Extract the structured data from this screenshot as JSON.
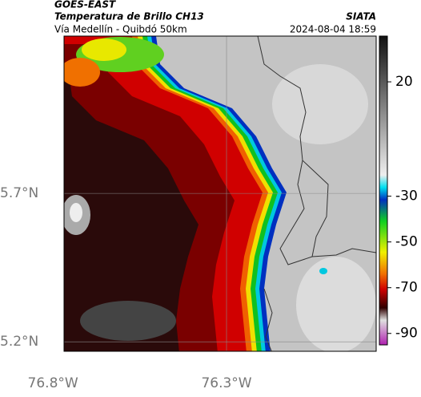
{
  "header": {
    "source": "GOES-EAST",
    "title": "Temperatura de Brillo CH13",
    "subtitle": "Vía Medellín - Quibdó 50km",
    "agency": "SIATA",
    "datetime": "2024-08-04 18:59"
  },
  "map": {
    "latlim": [
      5.168,
      6.23
    ],
    "lonlim": [
      -76.768,
      -75.869
    ],
    "lat_ticks": [
      {
        "value": 5.7,
        "label": "5.7°N"
      },
      {
        "value": 5.2,
        "label": "5.2°N"
      }
    ],
    "lon_ticks": [
      {
        "value": -76.8,
        "label": "76.8°W"
      },
      {
        "value": -76.3,
        "label": "76.3°W"
      }
    ]
  },
  "colorbar": {
    "lim": [
      40,
      -95
    ],
    "ticks": [
      20,
      -30,
      -50,
      -70,
      -90
    ]
  }
}
